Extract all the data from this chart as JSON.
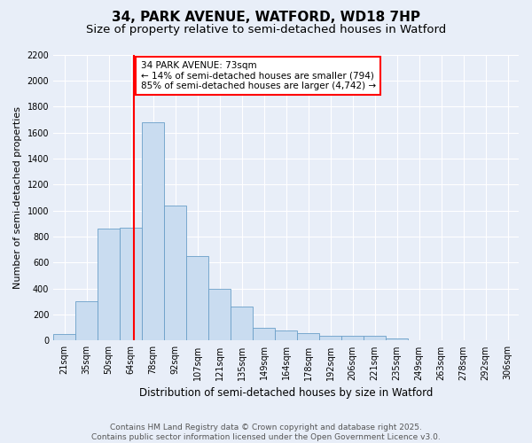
{
  "title1": "34, PARK AVENUE, WATFORD, WD18 7HP",
  "title2": "Size of property relative to semi-detached houses in Watford",
  "xlabel": "Distribution of semi-detached houses by size in Watford",
  "ylabel": "Number of semi-detached properties",
  "categories": [
    "21sqm",
    "35sqm",
    "50sqm",
    "64sqm",
    "78sqm",
    "92sqm",
    "107sqm",
    "121sqm",
    "135sqm",
    "149sqm",
    "164sqm",
    "178sqm",
    "192sqm",
    "206sqm",
    "221sqm",
    "235sqm",
    "249sqm",
    "263sqm",
    "278sqm",
    "292sqm",
    "306sqm"
  ],
  "values": [
    50,
    300,
    860,
    870,
    1680,
    1040,
    650,
    400,
    260,
    100,
    80,
    55,
    40,
    40,
    40,
    15,
    5,
    5,
    5,
    5,
    5
  ],
  "bar_color": "#c9dcf0",
  "bar_edge_color": "#6a9fc8",
  "annotation_text_line1": "34 PARK AVENUE: 73sqm",
  "annotation_text_line2": "← 14% of semi-detached houses are smaller (794)",
  "annotation_text_line3": "85% of semi-detached houses are larger (4,742) →",
  "annotation_box_facecolor": "white",
  "annotation_box_edgecolor": "red",
  "vline_color": "red",
  "ylim_max": 2200,
  "yticks": [
    0,
    200,
    400,
    600,
    800,
    1000,
    1200,
    1400,
    1600,
    1800,
    2000,
    2200
  ],
  "background_color": "#e8eef8",
  "grid_color": "white",
  "footer_line1": "Contains HM Land Registry data © Crown copyright and database right 2025.",
  "footer_line2": "Contains public sector information licensed under the Open Government Licence v3.0.",
  "title1_fontsize": 11,
  "title2_fontsize": 9.5,
  "tick_fontsize": 7,
  "ylabel_fontsize": 8,
  "xlabel_fontsize": 8.5,
  "annotation_fontsize": 7.5,
  "footer_fontsize": 6.5
}
